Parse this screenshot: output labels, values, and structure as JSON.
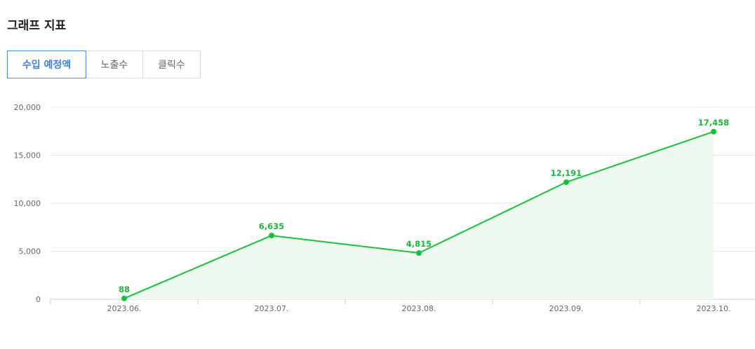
{
  "section": {
    "title": "그래프 지표"
  },
  "tabs": [
    {
      "label": "수입 예정액",
      "active": true
    },
    {
      "label": "노출수",
      "active": false
    },
    {
      "label": "클릭수",
      "active": false
    }
  ],
  "colors": {
    "series": "#17c23a",
    "area": "#eef9f0",
    "active_tab": "#3b82d6",
    "grid": "#e6e6e6"
  },
  "chart_data": {
    "type": "line",
    "x": [
      "2023.06.",
      "2023.07.",
      "2023.08.",
      "2023.09.",
      "2023.10."
    ],
    "series": [
      {
        "values": [
          88,
          6635,
          4815,
          12191,
          17458
        ],
        "labels": [
          "88",
          "6,635",
          "4,815",
          "12,191",
          "17,458"
        ]
      }
    ],
    "yticks": [
      0,
      5000,
      10000,
      15000,
      20000
    ],
    "ytick_labels": [
      "0",
      "5,000",
      "10,000",
      "15,000",
      "20,000"
    ],
    "ylim": [
      0,
      20000
    ],
    "grid": true,
    "area_fill": true
  }
}
